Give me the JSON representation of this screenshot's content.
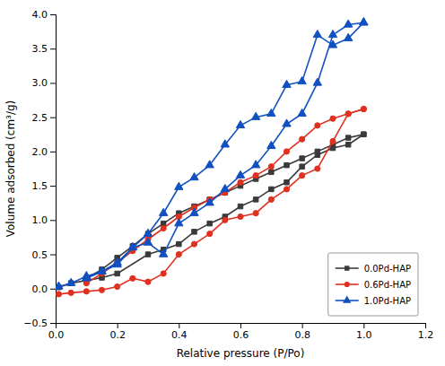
{
  "chart_data": {
    "type": "line",
    "x_label": "Relative pressure (P/Po)",
    "y_label": "Volume adsorbed (cm³/g)",
    "xlim": [
      0,
      1.2
    ],
    "ylim": [
      -0.5,
      4.0
    ],
    "xticks": [
      {
        "value": 0.0,
        "label": "0.0"
      },
      0.2,
      0.4,
      0.6,
      0.8,
      {
        "value": 1.0,
        "label": "1.0"
      },
      1.2
    ],
    "yticks": [
      {
        "value": -0.5,
        "label": "−0.5"
      },
      {
        "value": 0.0,
        "label": "0.0"
      },
      0.5,
      {
        "value": 1.0,
        "label": "1.0"
      },
      1.5,
      {
        "value": 2.0,
        "label": "2.0"
      },
      2.5,
      {
        "value": 3.0,
        "label": "3.0"
      },
      3.5,
      {
        "value": 4.0,
        "label": "4.0"
      }
    ],
    "grid": false,
    "legend": "lower right",
    "series": [
      {
        "name": "0.0Pd-HAP",
        "color": "#3a3a3a",
        "marker": "square",
        "x": [
          0.01,
          0.05,
          0.1,
          0.15,
          0.2,
          0.3,
          0.35,
          0.4,
          0.45,
          0.5,
          0.55,
          0.6,
          0.65,
          0.7,
          0.75,
          0.8,
          0.85,
          0.9,
          0.95,
          1.0
        ],
        "values": [
          0.02,
          0.08,
          0.12,
          0.16,
          0.22,
          0.5,
          0.57,
          0.65,
          0.83,
          0.95,
          1.05,
          1.2,
          1.3,
          1.45,
          1.55,
          1.78,
          1.95,
          2.05,
          2.1,
          2.25
        ]
      },
      {
        "color": "#3a3a3a",
        "marker": "square",
        "x": [
          1.0,
          0.95,
          0.9,
          0.85,
          0.8,
          0.75,
          0.7,
          0.65,
          0.6,
          0.55,
          0.5,
          0.45,
          0.4,
          0.35,
          0.3,
          0.25,
          0.2,
          0.15,
          0.1
        ],
        "values": [
          2.25,
          2.2,
          2.1,
          2.0,
          1.9,
          1.8,
          1.7,
          1.6,
          1.5,
          1.4,
          1.3,
          1.2,
          1.1,
          0.95,
          0.8,
          0.62,
          0.45,
          0.28,
          0.15
        ]
      },
      {
        "name": "0.6Pd-HAP",
        "color": "#e03020",
        "marker": "circle",
        "x": [
          0.01,
          0.05,
          0.1,
          0.15,
          0.2,
          0.25,
          0.3,
          0.35,
          0.4,
          0.45,
          0.5,
          0.55,
          0.6,
          0.65,
          0.7,
          0.75,
          0.8,
          0.85,
          0.9,
          0.95,
          1.0
        ],
        "values": [
          -0.08,
          -0.06,
          -0.04,
          -0.02,
          0.03,
          0.15,
          0.1,
          0.22,
          0.5,
          0.65,
          0.8,
          1.0,
          1.05,
          1.1,
          1.3,
          1.45,
          1.65,
          1.75,
          2.15,
          2.55,
          2.62
        ]
      },
      {
        "color": "#e03020",
        "marker": "circle",
        "x": [
          1.0,
          0.95,
          0.9,
          0.85,
          0.8,
          0.75,
          0.7,
          0.65,
          0.6,
          0.55,
          0.5,
          0.45,
          0.4,
          0.35,
          0.3,
          0.25,
          0.2,
          0.15,
          0.1
        ],
        "values": [
          2.62,
          2.55,
          2.48,
          2.38,
          2.18,
          2.0,
          1.78,
          1.65,
          1.55,
          1.4,
          1.3,
          1.18,
          1.05,
          0.88,
          0.72,
          0.55,
          0.38,
          0.22,
          0.08
        ]
      },
      {
        "name": "1.0Pd-HAP",
        "color": "#1050c0",
        "marker": "triangle",
        "x": [
          0.01,
          0.05,
          0.1,
          0.15,
          0.2,
          0.25,
          0.3,
          0.35,
          0.4,
          0.45,
          0.5,
          0.55,
          0.6,
          0.65,
          0.7,
          0.75,
          0.8,
          0.85,
          0.9,
          0.95,
          1.0
        ],
        "values": [
          0.03,
          0.08,
          0.18,
          0.25,
          0.35,
          0.6,
          0.67,
          0.5,
          0.95,
          1.1,
          1.25,
          1.45,
          1.65,
          1.8,
          2.08,
          2.4,
          2.55,
          3.0,
          3.7,
          3.85,
          3.88
        ]
      },
      {
        "color": "#1050c0",
        "marker": "triangle",
        "x": [
          1.0,
          0.95,
          0.9,
          0.85,
          0.8,
          0.75,
          0.7,
          0.65,
          0.6,
          0.55,
          0.5,
          0.45,
          0.4,
          0.35,
          0.3,
          0.25,
          0.2,
          0.15,
          0.1
        ],
        "values": [
          3.88,
          3.65,
          3.55,
          3.7,
          3.02,
          2.97,
          2.55,
          2.5,
          2.38,
          2.1,
          1.8,
          1.62,
          1.48,
          1.1,
          0.8,
          0.6,
          0.38,
          0.25,
          0.15
        ]
      }
    ]
  }
}
